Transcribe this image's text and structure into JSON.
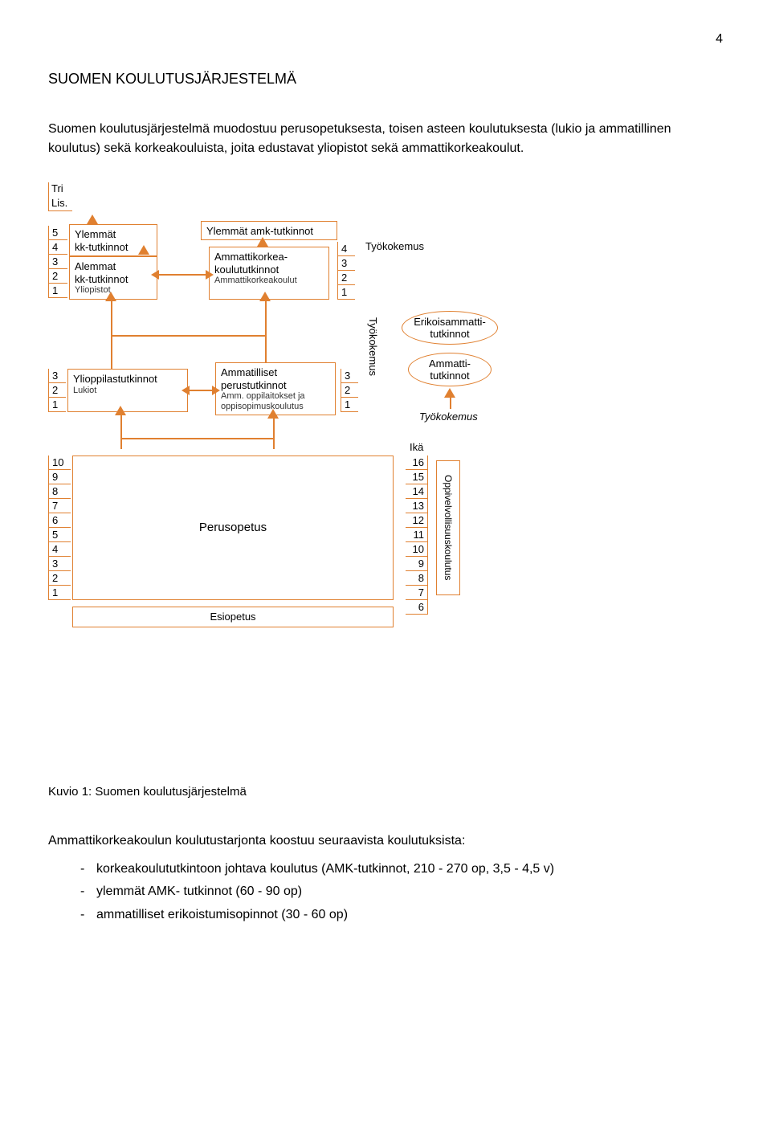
{
  "page_number": "4",
  "heading": "SUOMEN KOULUTUSJÄRJESTELMÄ",
  "intro": "Suomen koulutusjärjestelmä muodostuu perusopetuksesta, toisen asteen koulutuksesta (lukio ja ammatillinen koulutus) sekä korkeakouluista, joita edustavat yliopistot sekä ammattikorkeakoulut.",
  "caption": "Kuvio 1: Suomen koulutusjärjestelmä",
  "after_text": "Ammattikorkeakoulun koulutustarjonta koostuu seuraavista koulutuksista:",
  "bullets": [
    "korkeakoulututkintoon johtava koulutus (AMK-tutkinnot, 210 - 270 op, 3,5 - 4,5 v)",
    "ylemmät AMK- tutkinnot (60 - 90 op)",
    "ammatilliset erikoistumisopinnot (30 - 60 op)"
  ],
  "diagram": {
    "colors": {
      "line": "#e08030",
      "bg": "#ffffff",
      "text": "#000000"
    },
    "top_labels": {
      "tri": "Tri",
      "lis": "Lis."
    },
    "uni_scale": [
      "5",
      "4",
      "3",
      "2",
      "1"
    ],
    "amk_scale": [
      "4",
      "3",
      "2",
      "1"
    ],
    "lukio_scale": [
      "3",
      "2",
      "1"
    ],
    "amm_scale": [
      "3",
      "2",
      "1"
    ],
    "perus_scale": [
      "10",
      "9",
      "8",
      "7",
      "6",
      "5",
      "4",
      "3",
      "2",
      "1"
    ],
    "ika_label": "Ikä",
    "ika_scale": [
      "16",
      "15",
      "14",
      "13",
      "12",
      "11",
      "10",
      "9",
      "8",
      "7",
      "6"
    ],
    "boxes": {
      "ylemmat_kk": {
        "title": "Ylemmät\nkk-tutkinnot"
      },
      "alemmat_kk": {
        "title": "Alemmat\nkk-tutkinnot",
        "sub": "Yliopistot"
      },
      "ylemmat_amk": {
        "title": "Ylemmät amk-tutkinnot"
      },
      "amk": {
        "title": "Ammattikorkea-\nkoulututkinnot",
        "sub": "Ammattikorkeakoulut"
      },
      "lukio": {
        "title": "Ylioppilastutkinnot",
        "sub": "Lukiot"
      },
      "ammatilliset": {
        "title": "Ammatilliset\nperustutkinnot",
        "sub": "Amm. oppilaitokset ja\noppisopimuskoulutus"
      },
      "perusopetus": {
        "title": "Perusopetus"
      },
      "esiopetus": {
        "title": "Esiopetus"
      }
    },
    "ellipses": {
      "erikois": "Erikoisammatti-\ntutkinnot",
      "ammatti": "Ammatti-\ntutkinnot"
    },
    "side_labels": {
      "tyokokemus_top": "Työkokemus",
      "tyokokemus_v": "Työkokemus",
      "tyokokemus_bot": "Työkokemus",
      "oppivelv": "Oppivelvollisuuskoulutus"
    }
  }
}
